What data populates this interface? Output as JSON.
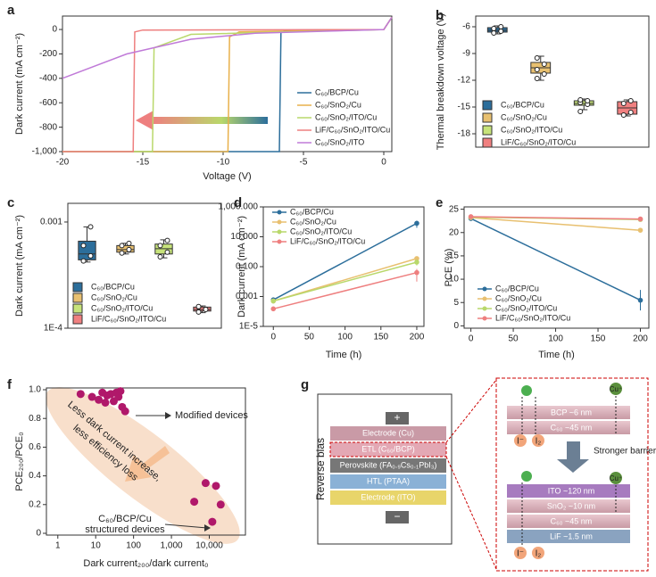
{
  "chart_data": [
    {
      "type": "line",
      "panel": "a",
      "xlabel": "Voltage (V)",
      "ylabel": "Dark current (mA cm⁻²)",
      "xlim": [
        -20,
        0.5
      ],
      "ylim": [
        -1000,
        110
      ],
      "xticks": [
        -20,
        -15,
        -10,
        -5,
        0
      ],
      "yticks": [
        0,
        -200,
        -400,
        -600,
        -800,
        {
          "value": -1000,
          "label": "-1,000"
        }
      ],
      "series": [
        {
          "name": "C₆₀/BCP/Cu",
          "color": "#2c6e9b",
          "x": [
            0.5,
            0,
            -6,
            -6.4,
            -6.5,
            -20
          ],
          "values": [
            100,
            0,
            -5,
            -20,
            -1000,
            -1000
          ]
        },
        {
          "name": "C₆₀/SnO₂/Cu",
          "color": "#e8b04a",
          "x": [
            0.5,
            0,
            -9,
            -9.6,
            -9.7,
            -20
          ],
          "values": [
            100,
            0,
            -20,
            -60,
            -1000,
            -1000
          ]
        },
        {
          "name": "C₆₀/SnO₂/ITO/Cu",
          "color": "#b9d86b",
          "x": [
            0.5,
            0,
            -12,
            -14.3,
            -14.4,
            -20
          ],
          "values": [
            100,
            0,
            -40,
            -150,
            -1000,
            -1000
          ]
        },
        {
          "name": "LiF/C₆₀/SnO₂/ITO/Cu",
          "color": "#ee7f7f",
          "x": [
            0.5,
            0,
            -15,
            -15.5,
            -15.6,
            -20
          ],
          "values": [
            100,
            0,
            -5,
            -20,
            -1000,
            -1000
          ]
        },
        {
          "name": "C₆₀/SnO₂/ITO",
          "color": "#c07ad8",
          "x": [
            0.5,
            0,
            -8,
            -12,
            -16,
            -20
          ],
          "values": [
            100,
            0,
            -30,
            -80,
            -200,
            -400
          ]
        }
      ]
    },
    {
      "type": "box",
      "panel": "b",
      "ylabel": "Thermal breakdown voltage (V)",
      "ylim": [
        -19.5,
        -4.8
      ],
      "yticks": [
        -6,
        -9,
        -12,
        -15,
        -18
      ],
      "series": [
        {
          "name": "C₆₀/BCP/Cu",
          "color": "#2c6e9b",
          "min": -6.8,
          "q1": -6.6,
          "median": -6.4,
          "q3": -6.1,
          "max": -5.9,
          "points": [
            -6.7,
            -6.5,
            -6.2,
            -6.0
          ]
        },
        {
          "name": "C₆₀/SnO₂/Cu",
          "color": "#e8c070",
          "min": -12,
          "q1": -11.2,
          "median": -10.6,
          "q3": -10,
          "max": -9.3,
          "points": [
            -11.8,
            -11.3,
            -10.8,
            -10.2,
            -9.5
          ]
        },
        {
          "name": "C₆₀/SnO₂/ITO/Cu",
          "color": "#c7e37a",
          "min": -15.3,
          "q1": -14.8,
          "median": -14.6,
          "q3": -14.3,
          "max": -14.1,
          "points": [
            -15.5,
            -14.7,
            -14.5,
            -14.3,
            -14.2
          ]
        },
        {
          "name": "LiF/C₆₀/SnO₂/ITO/Cu",
          "color": "#f08080",
          "min": -16,
          "q1": -15.8,
          "median": -15.1,
          "q3": -14.4,
          "max": -14.2,
          "points": [
            -15.9,
            -15.6,
            -14.6,
            -14.3
          ]
        }
      ]
    },
    {
      "type": "box",
      "panel": "c",
      "ylabel": "Dark current (mA cm⁻²)",
      "log_y": true,
      "ylim": [
        0.0001,
        0.0015
      ],
      "yticks": [
        {
          "value": 0.0001,
          "label": "1E-4"
        },
        0.001
      ],
      "series": [
        {
          "name": "C₆₀/BCP/Cu",
          "color": "#2c6e9b",
          "min": 0.00042,
          "q1": 0.00044,
          "median": 0.0005,
          "q3": 0.00066,
          "max": 0.0009,
          "points": [
            0.00043,
            0.00048,
            0.0006,
            0.0009
          ]
        },
        {
          "name": "C₆₀/SnO₂/Cu",
          "color": "#e8c070",
          "min": 0.0005,
          "q1": 0.00052,
          "median": 0.00055,
          "q3": 0.0006,
          "max": 0.00063,
          "points": [
            0.00051,
            0.00055,
            0.0006,
            0.00063
          ]
        },
        {
          "name": "C₆₀/SnO₂/ITO/Cu",
          "color": "#c7e37a",
          "min": 0.00046,
          "q1": 0.0005,
          "median": 0.00056,
          "q3": 0.00062,
          "max": 0.00068,
          "points": [
            0.00047,
            0.00052,
            0.0006,
            0.00067
          ]
        },
        {
          "name": "LiF/C₆₀/SnO₂/ITO/Cu",
          "color": "#f08080",
          "min": 0.00014,
          "q1": 0.000145,
          "median": 0.00015,
          "q3": 0.000158,
          "max": 0.000162,
          "points": [
            0.000142,
            0.00015,
            0.00016
          ]
        }
      ]
    },
    {
      "type": "line",
      "panel": "d",
      "xlabel": "Time (h)",
      "ylabel": "Dark current (mA cm⁻²)",
      "log_y": true,
      "markers": true,
      "x": [
        0,
        200
      ],
      "xlim": [
        -14,
        210
      ],
      "ylim": [
        1e-05,
        1000
      ],
      "xticks": [
        0,
        50,
        100,
        150,
        200
      ],
      "yticks": [
        {
          "value": 1e-05,
          "label": "1E-5"
        },
        0.001,
        {
          "value": 0.1,
          "label": "0.100"
        },
        {
          "value": 10,
          "label": "10.000"
        },
        {
          "value": 1000,
          "label": "1,000.000"
        }
      ],
      "series": [
        {
          "name": "C₆₀/BCP/Cu",
          "color": "#2c6e9b",
          "values": [
            0.0006,
            80
          ],
          "errors": [
            0.0001,
            40
          ]
        },
        {
          "name": "C₆₀/SnO₂/Cu",
          "color": "#e8c070",
          "values": [
            0.0005,
            0.35
          ],
          "errors": [
            0.0001,
            0.1
          ]
        },
        {
          "name": "C₆₀/SnO₂/ITO/Cu",
          "color": "#b9d86b",
          "values": [
            0.0005,
            0.2
          ],
          "errors": [
            0.0001,
            0.08
          ]
        },
        {
          "name": "LiF/C₆₀/SnO₂/ITO/Cu",
          "color": "#ee7f7f",
          "values": [
            0.00015,
            0.04
          ],
          "errors": [
            3e-05,
            0.03
          ]
        }
      ]
    },
    {
      "type": "line",
      "panel": "e",
      "xlabel": "Time (h)",
      "ylabel": "PCE (%)",
      "markers": true,
      "x": [
        0,
        200
      ],
      "xlim": [
        -8,
        210
      ],
      "ylim": [
        -0.5,
        25.5
      ],
      "xticks": [
        0,
        50,
        100,
        150,
        200
      ],
      "yticks": [
        0,
        5,
        10,
        15,
        20,
        25
      ],
      "series": [
        {
          "name": "C₆₀/BCP/Cu",
          "color": "#2c6e9b",
          "values": [
            23,
            5.5
          ],
          "errors": [
            0.3,
            2.2
          ]
        },
        {
          "name": "C₆₀/SnO₂/Cu",
          "color": "#e8c070",
          "values": [
            23.2,
            20.5
          ],
          "errors": [
            0.3,
            0.4
          ]
        },
        {
          "name": "C₆₀/SnO₂/ITO/Cu",
          "color": "#b9d86b",
          "values": [
            23.3,
            22.8
          ],
          "errors": [
            0.3,
            0.3
          ]
        },
        {
          "name": "LiF/C₆₀/SnO₂/ITO/Cu",
          "color": "#ee7f7f",
          "values": [
            23.4,
            22.9
          ],
          "errors": [
            0.3,
            0.3
          ]
        }
      ]
    },
    {
      "type": "scatter",
      "panel": "f",
      "xlabel": "Dark current₂₀₀/dark current₀",
      "ylabel": "PCE₂₀₀/PCE₀",
      "log_x": true,
      "color": "#b0186a",
      "xlim": [
        0.5,
        90000
      ],
      "ylim": [
        -0.0125,
        1.0125
      ],
      "xticks": [
        1,
        10,
        100,
        {
          "value": 1000,
          "label": "1,000"
        },
        {
          "value": 10000,
          "label": "10,000"
        }
      ],
      "yticks": [
        0,
        0.2,
        0.4,
        0.6,
        0.8,
        {
          "value": 1,
          "label": "1.0"
        }
      ],
      "x": [
        4,
        8,
        12,
        15,
        18,
        20,
        25,
        30,
        35,
        40,
        45,
        50,
        60,
        4000,
        8000,
        12000,
        15000,
        20000
      ],
      "values": [
        0.97,
        0.95,
        0.93,
        0.98,
        0.91,
        0.96,
        0.97,
        0.92,
        0.98,
        0.95,
        0.99,
        0.88,
        0.85,
        0.22,
        0.35,
        0.08,
        0.33,
        0.2
      ],
      "annotations": [
        "Modified devices",
        "Less dark current increase,",
        "less efficiency loss",
        "C₆₀/BCP/Cu",
        "structured devices"
      ]
    }
  ],
  "diagram": {
    "panel": "g",
    "bias": "Reverse bias",
    "plus": "+",
    "minus": "−",
    "layers": [
      "Electrode (Cu)",
      "ETL (C₆₀/BCP)",
      "Perovskite (FA₀.₉Cs₀.₁PbI₃)",
      "HTL (PTAA)",
      "Electrode (ITO)"
    ],
    "top_layers": [
      "BCP ~6 nm",
      "C₆₀ ~45 nm"
    ],
    "barrier": "Stronger barrier",
    "bottom_layers": [
      "ITO ~120 nm",
      "SnO₂ ~10 nm",
      "C₆₀ ~45 nm",
      "LiF ~1.5 nm"
    ],
    "ions": [
      "I⁻",
      "I₂",
      "Cu⁺"
    ]
  }
}
